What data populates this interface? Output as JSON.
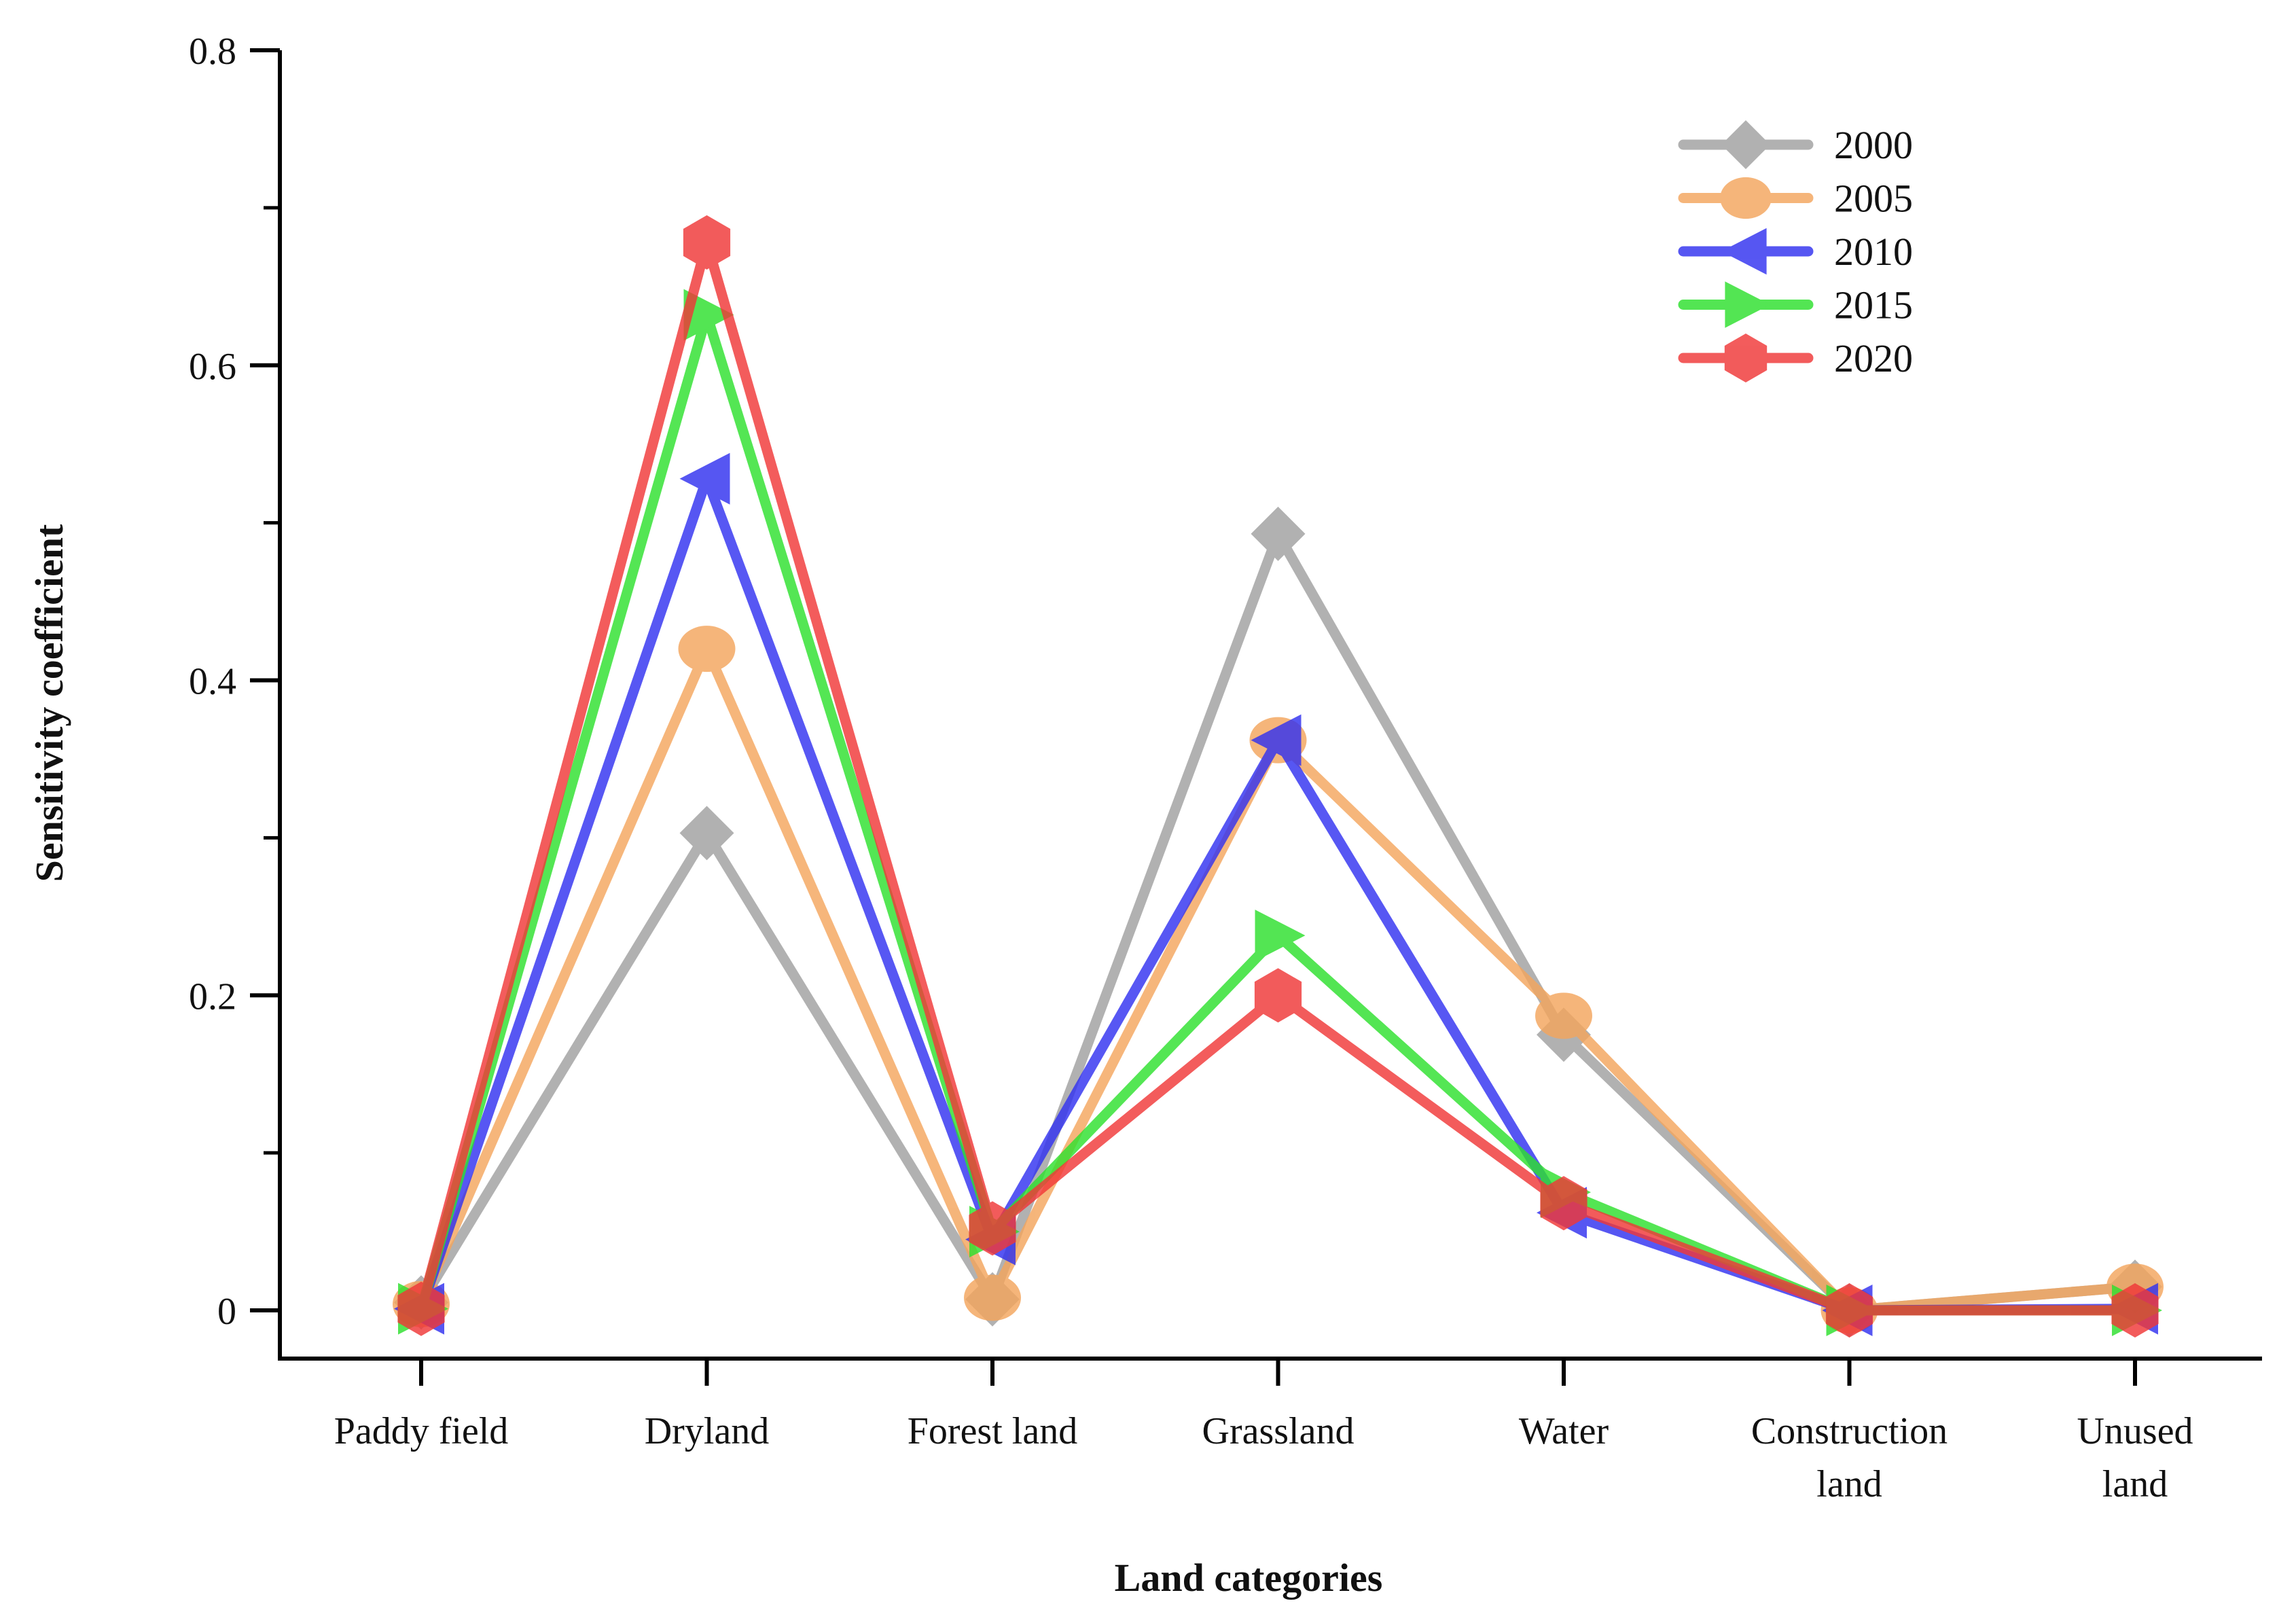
{
  "chart_data": {
    "type": "line",
    "title": "",
    "xlabel": "Land categories",
    "ylabel": "Sensitivity coefficient",
    "categories": [
      [
        "Paddy field"
      ],
      [
        "Dryland"
      ],
      [
        "Forest land"
      ],
      [
        "Grassland"
      ],
      [
        "Water"
      ],
      [
        "Construction",
        "land"
      ],
      [
        "Unused",
        "land"
      ]
    ],
    "ylim": [
      0,
      0.8
    ],
    "yticks": [
      {
        "value": 0,
        "label": "0"
      },
      {
        "value": 0.2,
        "label": "0.2"
      },
      {
        "value": 0.4,
        "label": "0.4"
      },
      {
        "value": 0.6,
        "label": "0.6"
      },
      {
        "value": 0.8,
        "label": "0.8"
      }
    ],
    "minor_yticks": [
      0.1,
      0.3,
      0.5,
      0.7
    ],
    "legend_position": "top-right",
    "series": [
      {
        "name": "2000",
        "color": "#a0a0a0",
        "marker": "diamond",
        "values": [
          0.005,
          0.303,
          0.007,
          0.493,
          0.175,
          0.0,
          0.015
        ]
      },
      {
        "name": "2005",
        "color": "#f4a65e",
        "marker": "circle",
        "values": [
          0.004,
          0.42,
          0.008,
          0.362,
          0.187,
          0.0,
          0.015
        ]
      },
      {
        "name": "2010",
        "color": "#3232f0",
        "marker": "triangle-left",
        "values": [
          0.001,
          0.528,
          0.045,
          0.362,
          0.062,
          0.0,
          0.001
        ]
      },
      {
        "name": "2015",
        "color": "#2ee02e",
        "marker": "triangle-right",
        "values": [
          0.001,
          0.632,
          0.05,
          0.238,
          0.075,
          0.0,
          0.0
        ]
      },
      {
        "name": "2020",
        "color": "#f03838",
        "marker": "hexagon",
        "values": [
          0.001,
          0.678,
          0.052,
          0.2,
          0.068,
          0.0,
          0.0
        ]
      }
    ]
  }
}
